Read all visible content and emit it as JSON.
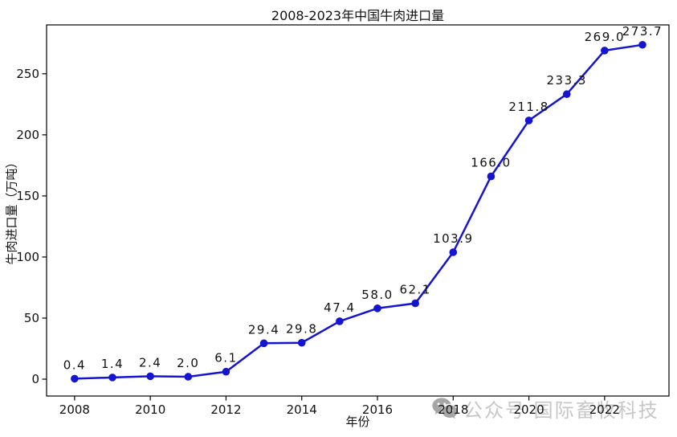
{
  "chart_data": {
    "type": "line",
    "title": "2008-2023年中国牛肉进口量",
    "xlabel": "年份",
    "ylabel": "牛肉进口量（万吨）",
    "x": [
      2008,
      2009,
      2010,
      2011,
      2012,
      2013,
      2014,
      2015,
      2016,
      2017,
      2018,
      2019,
      2020,
      2021,
      2022,
      2023
    ],
    "values": [
      0.4,
      1.4,
      2.4,
      2.0,
      6.1,
      29.4,
      29.8,
      47.4,
      58.0,
      62.1,
      103.9,
      166.0,
      211.8,
      233.3,
      269.0,
      273.7
    ],
    "point_labels": [
      "0.4",
      "1.4",
      "2.4",
      "2.0",
      "6.1",
      "29.4",
      "29.8",
      "47.4",
      "58.0",
      "62.1",
      "103.9",
      "166.0",
      "211.8",
      "233.3",
      "269.0",
      "273.7"
    ],
    "x_ticks": [
      2008,
      2010,
      2012,
      2014,
      2016,
      2018,
      2020,
      2022
    ],
    "y_ticks": [
      0,
      50,
      100,
      150,
      200,
      250
    ],
    "xlim": [
      2007.26,
      2023.7
    ],
    "ylim": [
      -13.8,
      290.0
    ],
    "grid": false,
    "legend_position": "none",
    "line_color": "#1414d2",
    "marker": "circle",
    "axis_color": "#000000"
  },
  "watermark": {
    "icon": "wechat-icon",
    "text": "公众号 国际畜牧科技",
    "text_color": "#c7c7c7",
    "icon_color": "#a6a6a6"
  }
}
